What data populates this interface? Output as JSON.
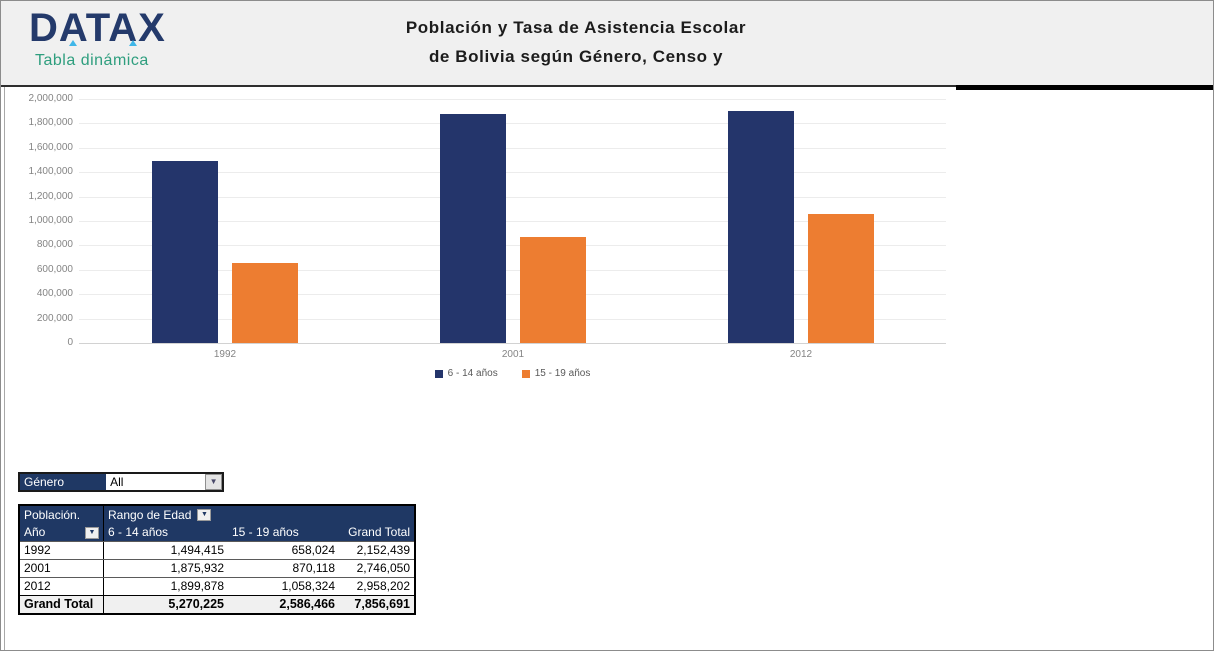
{
  "header": {
    "logo_text": "DATAX",
    "logo_subtitle": "Tabla dinámica",
    "title_line1": "Población y Tasa de Asistencia Escolar",
    "title_line2": "de Bolivia según Género, Censo y"
  },
  "colors": {
    "bar_navy": "#24356B",
    "bar_orange": "#ED7D31",
    "table_header_navy": "#1F3864",
    "logo_navy": "#243A6B",
    "logo_accent_blue": "#3FB6E8",
    "logo_teal": "#2E9E7E"
  },
  "chart_data": {
    "type": "bar",
    "categories": [
      "1992",
      "2001",
      "2012"
    ],
    "series": [
      {
        "name": "6 - 14 años",
        "color": "#24356B",
        "values": [
          1494415,
          1875932,
          1899878
        ]
      },
      {
        "name": "15 - 19 años",
        "color": "#ED7D31",
        "values": [
          658024,
          870118,
          1058324
        ]
      }
    ],
    "ylim": [
      0,
      2000000
    ],
    "ytick_step": 200000,
    "grid": true,
    "legend_position": "bottom"
  },
  "filter": {
    "label": "Género",
    "value": "All",
    "dropdown_icon": "▼"
  },
  "pivot": {
    "corner_label": "Población.",
    "row_field_label": "Año",
    "col_field_label": "Rango de Edad",
    "dropdown_icon": "▼",
    "columns": [
      "6 - 14 años",
      "15 - 19 años",
      "Grand Total"
    ],
    "rows": [
      {
        "year": "1992",
        "values": [
          "1,494,415",
          "658,024",
          "2,152,439"
        ]
      },
      {
        "year": "2001",
        "values": [
          "1,875,932",
          "870,118",
          "2,746,050"
        ]
      },
      {
        "year": "2012",
        "values": [
          "1,899,878",
          "1,058,324",
          "2,958,202"
        ]
      }
    ],
    "grand_total": {
      "label": "Grand Total",
      "values": [
        "5,270,225",
        "2,586,466",
        "7,856,691"
      ]
    }
  }
}
